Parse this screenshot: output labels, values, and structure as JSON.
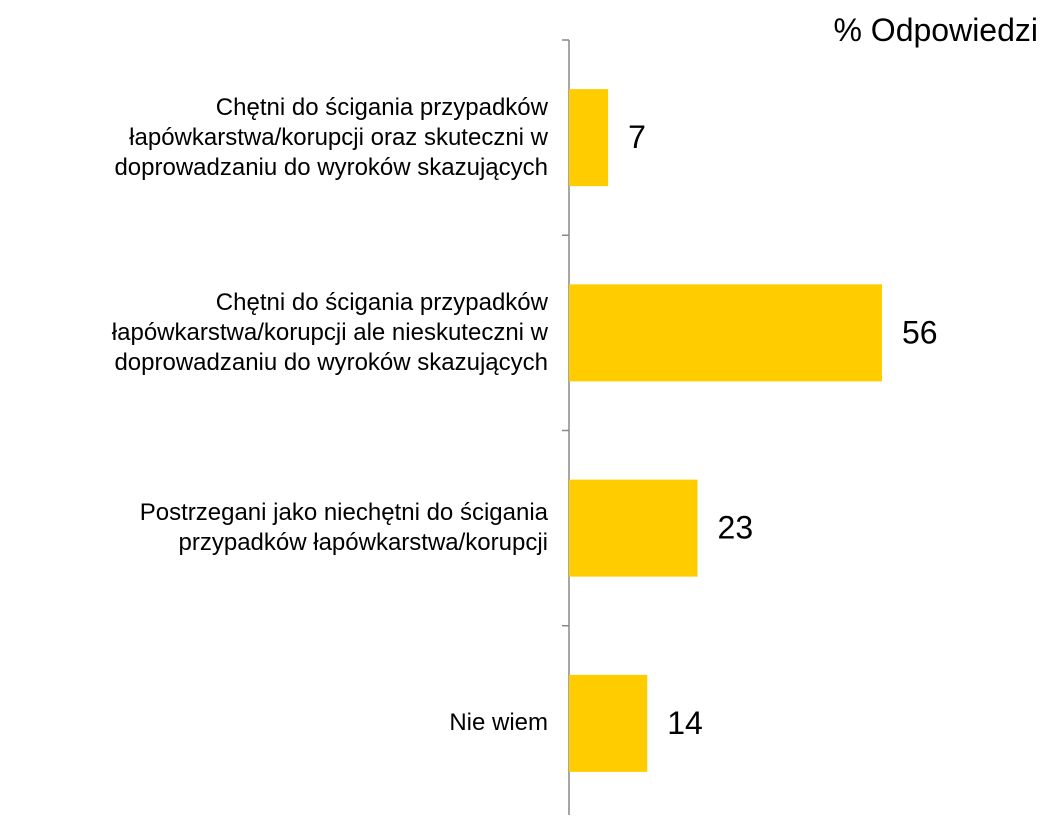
{
  "chart_data": {
    "type": "bar",
    "orientation": "horizontal",
    "title": "% Odpowiedzi",
    "categories": [
      "Chętni do ścigania przypadków łapówkarstwa/korupcji oraz skuteczni w doprowadzaniu do wyroków skazujących",
      "Chętni do ścigania przypadków łapówkarstwa/korupcji ale nieskuteczni w doprowadzaniu do wyroków skazujących",
      "Postrzegani jako niechętni do ścigania przypadków łapówkarstwa/korupcji",
      "Nie wiem"
    ],
    "values": [
      7,
      56,
      23,
      14
    ],
    "color": "#ffcc00"
  }
}
